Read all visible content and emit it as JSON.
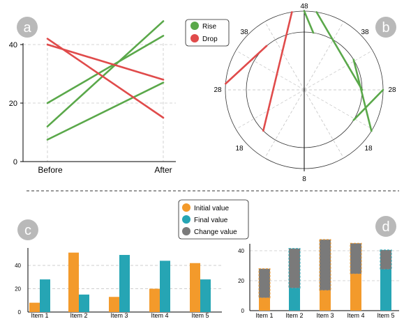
{
  "colors": {
    "rise": "#5aa84a",
    "drop": "#e04b4b",
    "initial": "#f39a2b",
    "final": "#26a5b4",
    "change": "#7a7a7a",
    "panel_badge": "#b9b9b9",
    "grid": "#c8c8c8"
  },
  "chart_data": [
    {
      "id": "a",
      "type": "line",
      "badge": "a",
      "categories": [
        "Before",
        "After"
      ],
      "yticks": [
        "0",
        "20",
        "40"
      ],
      "ylim": [
        0,
        45
      ],
      "legend": {
        "placement": "top-right",
        "entries": [
          "Rise",
          "Drop"
        ]
      },
      "series": [
        {
          "group": "Rise",
          "values": [
            20,
            43
          ]
        },
        {
          "group": "Rise",
          "values": [
            12,
            48
          ]
        },
        {
          "group": "Rise",
          "values": [
            7.5,
            27
          ]
        },
        {
          "group": "Drop",
          "values": [
            42,
            15
          ]
        },
        {
          "group": "Drop",
          "values": [
            40,
            28
          ]
        }
      ],
      "grid": true
    },
    {
      "id": "b",
      "type": "line",
      "subtype": "polar",
      "badge": "b",
      "rlim": [
        8,
        48
      ],
      "angle_labels": [
        "48",
        "38",
        "38",
        "28",
        "28",
        "18",
        "18",
        "8"
      ],
      "series": [
        {
          "group": "Rise",
          "values": [
            48,
            46
          ]
        },
        {
          "group": "Rise",
          "values": [
            46,
            28
          ]
        },
        {
          "group": "Rise",
          "values": [
            28,
            21
          ]
        },
        {
          "group": "Rise",
          "values": [
            21,
            35
          ]
        },
        {
          "group": "Drop",
          "values": [
            29,
            39
          ]
        },
        {
          "group": "Drop",
          "values": [
            46,
            18
          ]
        }
      ],
      "grid": true
    },
    {
      "id": "c",
      "type": "bar",
      "badge": "c",
      "categories": [
        "Item 1",
        "Item 2",
        "Item 3",
        "Item 4",
        "Item 5"
      ],
      "yticks": [
        "0",
        "20",
        "40"
      ],
      "ylim": [
        0,
        52
      ],
      "series": [
        {
          "name": "Initial value",
          "values": [
            8,
            51,
            13,
            20,
            42
          ]
        },
        {
          "name": "Final value",
          "values": [
            28,
            15,
            49,
            44,
            28
          ]
        }
      ],
      "legend": {
        "placement": "top-center",
        "entries": [
          "Initial value",
          "Final value",
          "Change value"
        ]
      },
      "grid": true
    },
    {
      "id": "d",
      "type": "bar",
      "subtype": "stacked",
      "badge": "d",
      "categories": [
        "Item 1",
        "Item 2",
        "Item 3",
        "Item 4",
        "Item 5"
      ],
      "yticks": [
        "0",
        "20",
        "40"
      ],
      "ylim": [
        0,
        50
      ],
      "series": [
        {
          "name": "Initial value",
          "values": [
            8.5,
            0,
            13.5,
            24.5,
            0
          ]
        },
        {
          "name": "Final value",
          "values": [
            0,
            15,
            0,
            0,
            27.5
          ]
        },
        {
          "name": "Change value",
          "values": [
            19.5,
            26.5,
            34,
            20.5,
            13
          ]
        }
      ],
      "grid": true
    }
  ]
}
